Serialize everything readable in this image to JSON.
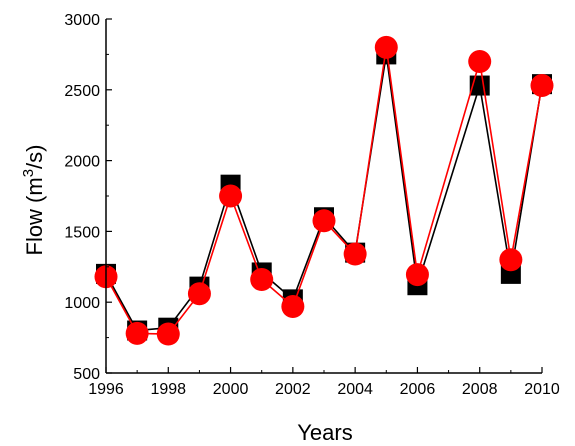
{
  "chart_data": {
    "type": "line",
    "xlabel": "Years",
    "ylabel_main": "Flow (m",
    "ylabel_sup": "3",
    "ylabel_tail": "/s)",
    "xlim": [
      1996,
      2010
    ],
    "ylim": [
      500,
      3000
    ],
    "xticks": [
      1996,
      1998,
      2000,
      2002,
      2004,
      2006,
      2008,
      2010
    ],
    "yticks": [
      500,
      1000,
      1500,
      2000,
      2500,
      3000
    ],
    "grid": false,
    "legend": "none",
    "series": [
      {
        "marker": "square",
        "color": "#000000",
        "x": [
          1996,
          1997,
          1998,
          1999,
          2000,
          2001,
          2002,
          2003,
          2004,
          2005,
          2006,
          2008,
          2009,
          2010
        ],
        "y": [
          1200,
          800,
          820,
          1110,
          1830,
          1210,
          1020,
          1600,
          1350,
          2750,
          1120,
          2530,
          1200,
          2540
        ]
      },
      {
        "marker": "circle",
        "color": "#ff0000",
        "x": [
          1996,
          1997,
          1998,
          1999,
          2000,
          2001,
          2002,
          2003,
          2004,
          2005,
          2006,
          2008,
          2009,
          2010
        ],
        "y": [
          1180,
          780,
          775,
          1060,
          1750,
          1160,
          970,
          1575,
          1340,
          2800,
          1195,
          2700,
          1300,
          2530
        ]
      }
    ]
  }
}
